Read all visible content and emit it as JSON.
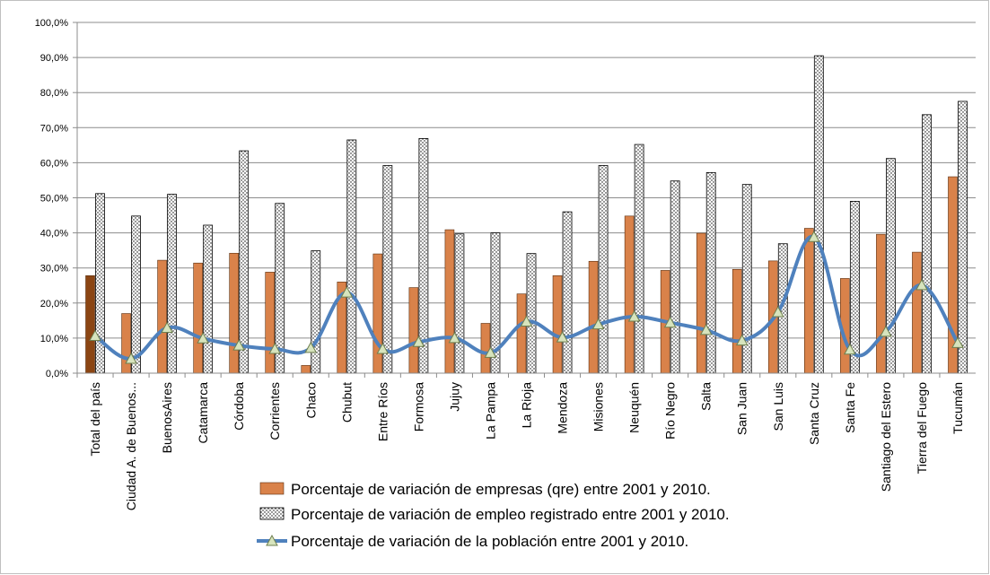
{
  "chart_data": {
    "type": "bar",
    "categories": [
      "Total del país",
      "Ciudad A. de Buenos...",
      "BuenosAires",
      "Catamarca",
      "Córdoba",
      "Corrientes",
      "Chaco",
      "Chubut",
      "Entre Ríos",
      "Formosa",
      "Jujuy",
      "La Pampa",
      "La Rioja",
      "Mendoza",
      "Misiones",
      "Neuquén",
      "Río Negro",
      "Salta",
      "San Juan",
      "San Luis",
      "Santa Cruz",
      "Santa Fe",
      "Santiago del Estero",
      "Tierra del Fuego",
      "Tucumán"
    ],
    "series": [
      {
        "name": "Porcentaje de variación de empresas (qre) entre 2001 y 2010.",
        "kind": "bar",
        "color": "#d9824a",
        "highlight_first_color": "#8b4513",
        "values": [
          27.8,
          17.0,
          32.2,
          31.4,
          34.2,
          28.8,
          2.2,
          26.0,
          34.0,
          24.4,
          40.9,
          14.2,
          22.6,
          27.8,
          31.9,
          44.8,
          29.3,
          39.9,
          29.6,
          32.0,
          41.3,
          27.0,
          39.6,
          34.5,
          56.0
        ]
      },
      {
        "name": "Porcentaje de variación de empleo registrado entre 2001 y 2010.",
        "kind": "bar",
        "color": "#ffffff",
        "pattern": "dots",
        "values": [
          51.2,
          44.8,
          51.0,
          42.2,
          63.4,
          48.4,
          34.9,
          66.5,
          59.2,
          66.9,
          39.7,
          40.0,
          34.1,
          46.0,
          59.2,
          65.2,
          54.8,
          57.2,
          53.8,
          36.9,
          90.5,
          49.0,
          61.2,
          73.7,
          77.5
        ]
      },
      {
        "name": "Porcentaje de variación de la población entre 2001 y 2010.",
        "kind": "line",
        "color": "#4f81bd",
        "marker_color": "#d7e4bd",
        "values": [
          10.6,
          4.1,
          12.9,
          9.9,
          7.9,
          6.9,
          7.2,
          23.0,
          6.9,
          8.9,
          10.0,
          5.8,
          14.7,
          10.2,
          13.9,
          16.1,
          14.4,
          12.3,
          9.3,
          17.4,
          38.8,
          6.7,
          11.8,
          25.1,
          8.6
        ]
      }
    ],
    "y_ticks": [
      "0,0%",
      "10,0%",
      "20,0%",
      "30,0%",
      "40,0%",
      "50,0%",
      "60,0%",
      "70,0%",
      "80,0%",
      "90,0%",
      "100,0%"
    ],
    "ylim": [
      0,
      100
    ],
    "grid": "horizontal",
    "legend_position": "bottom-center"
  }
}
